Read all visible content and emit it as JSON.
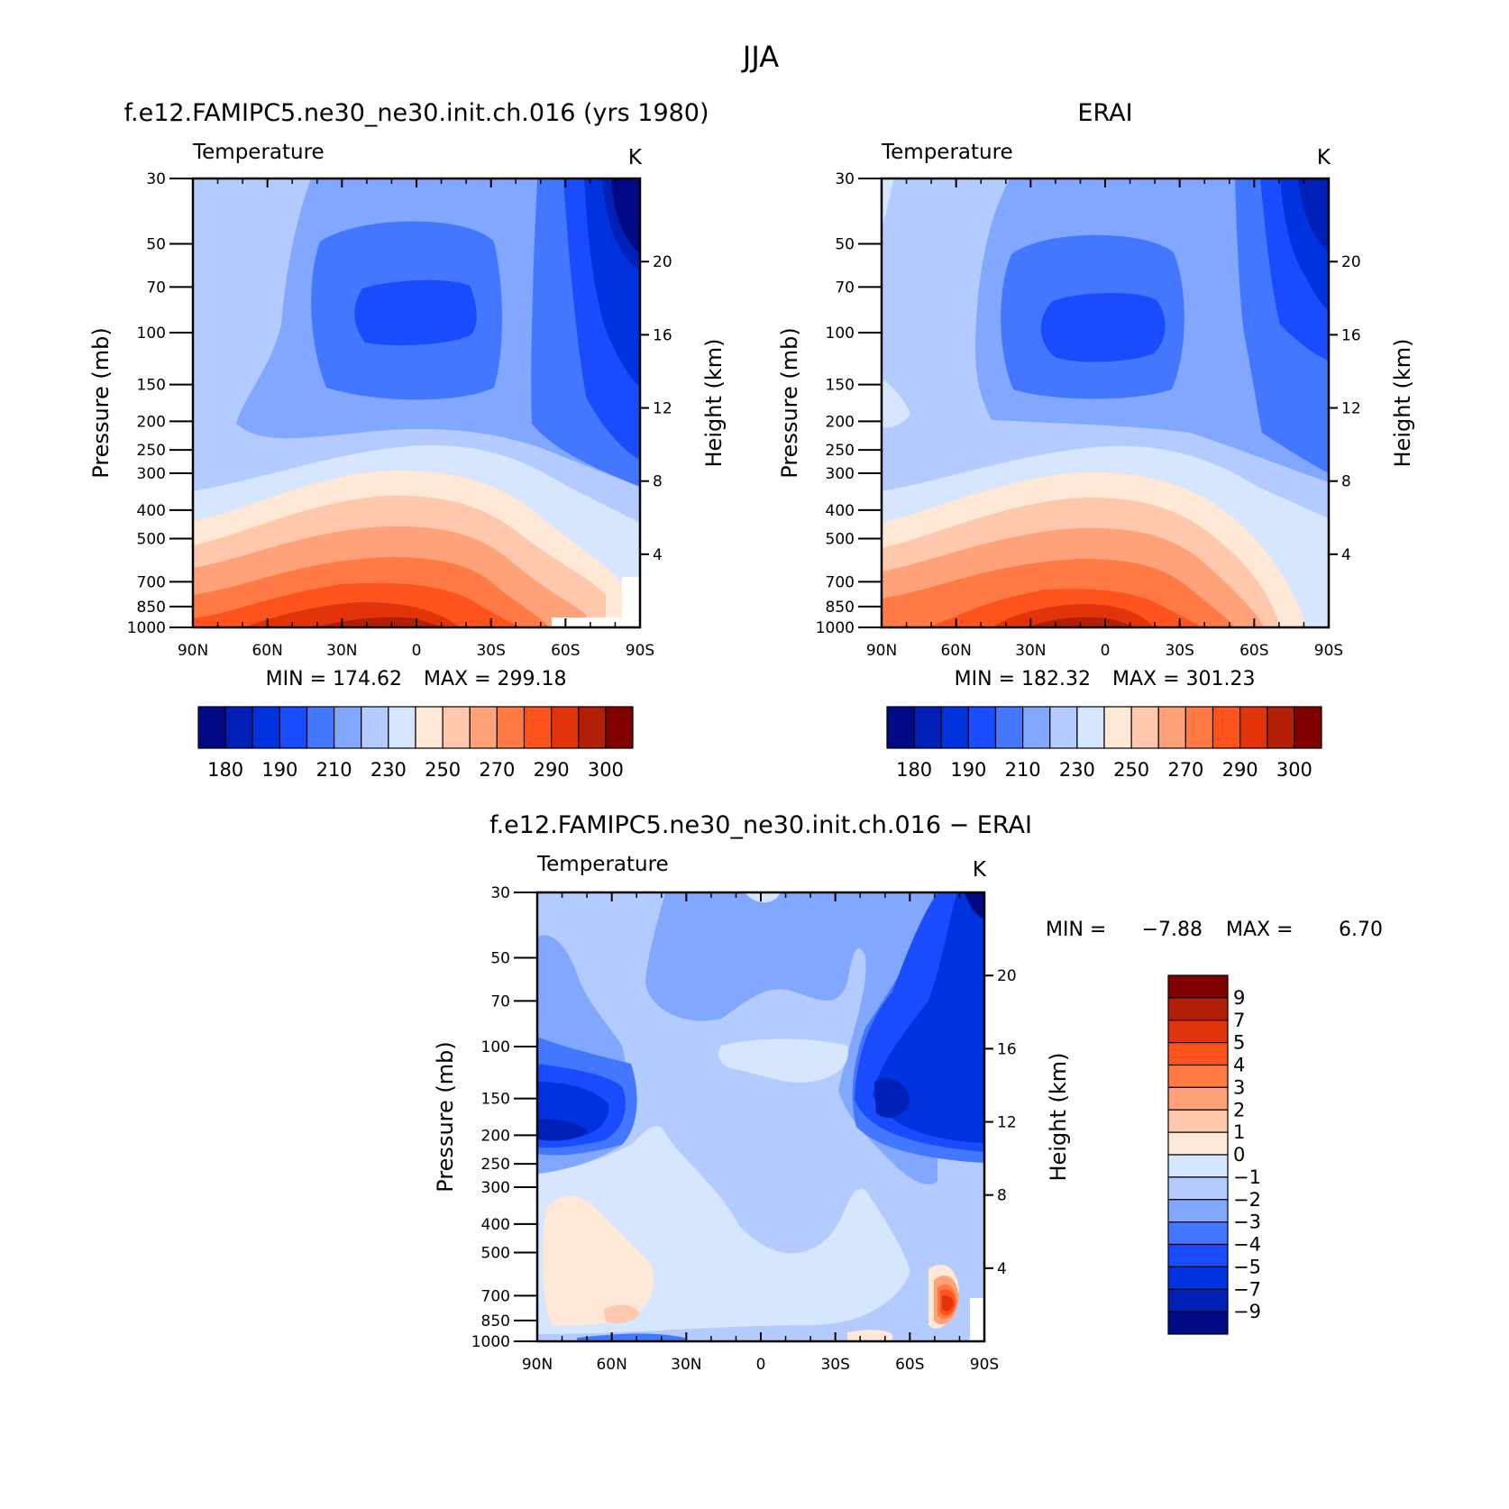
{
  "figure_title": "JJA",
  "chart_data": [
    {
      "type": "contour",
      "panel_title": "f.e12.FAMIPC5.ne30_ne30.init.ch.016 (yrs 1980)",
      "variable": "Temperature",
      "units": "K",
      "x_ticks": [
        "90N",
        "60N",
        "30N",
        "0",
        "30S",
        "60S",
        "90S"
      ],
      "y_ticks": [
        "30",
        "50",
        "70",
        "100",
        "150",
        "200",
        "250",
        "300",
        "400",
        "500",
        "700",
        "850",
        "1000"
      ],
      "y2_ticks": [
        "20",
        "16",
        "12",
        "8",
        "4"
      ],
      "xlabel": "",
      "ylabel": "Pressure (mb)",
      "y2label": "Height (km)",
      "min_label": "MIN = 174.62",
      "max_label": "MAX = 299.18",
      "min": 174.62,
      "max": 299.18,
      "colorbar_labels": [
        "180",
        "190",
        "210",
        "230",
        "250",
        "270",
        "290",
        "300"
      ],
      "colorbar_colors": [
        "#000a85",
        "#0020b7",
        "#0033e0",
        "#1a4cff",
        "#4477ff",
        "#82a7ff",
        "#b3cbff",
        "#d6e6ff",
        "#ffe8d6",
        "#ffc8ad",
        "#ffa27a",
        "#ff7a45",
        "#ff531e",
        "#e3330b",
        "#b31e07",
        "#820000"
      ]
    },
    {
      "type": "contour",
      "panel_title": "ERAI",
      "variable": "Temperature",
      "units": "K",
      "x_ticks": [
        "90N",
        "60N",
        "30N",
        "0",
        "30S",
        "60S",
        "90S"
      ],
      "y_ticks": [
        "30",
        "50",
        "70",
        "100",
        "150",
        "200",
        "250",
        "300",
        "400",
        "500",
        "700",
        "850",
        "1000"
      ],
      "y2_ticks": [
        "20",
        "16",
        "12",
        "8",
        "4"
      ],
      "ylabel": "Pressure (mb)",
      "y2label": "Height (km)",
      "min_label": "MIN = 182.32",
      "max_label": "MAX = 301.23",
      "min": 182.32,
      "max": 301.23,
      "colorbar_labels": [
        "180",
        "190",
        "210",
        "230",
        "250",
        "270",
        "290",
        "300"
      ],
      "colorbar_colors": [
        "#000a85",
        "#0020b7",
        "#0033e0",
        "#1a4cff",
        "#4477ff",
        "#82a7ff",
        "#b3cbff",
        "#d6e6ff",
        "#ffe8d6",
        "#ffc8ad",
        "#ffa27a",
        "#ff7a45",
        "#ff531e",
        "#e3330b",
        "#b31e07",
        "#820000"
      ]
    },
    {
      "type": "contour",
      "panel_title": "f.e12.FAMIPC5.ne30_ne30.init.ch.016 − ERAI",
      "variable": "Temperature",
      "units": "K",
      "x_ticks": [
        "90N",
        "60N",
        "30N",
        "0",
        "30S",
        "60S",
        "90S"
      ],
      "y_ticks": [
        "30",
        "50",
        "70",
        "100",
        "150",
        "200",
        "250",
        "300",
        "400",
        "500",
        "700",
        "850",
        "1000"
      ],
      "y2_ticks": [
        "20",
        "16",
        "12",
        "8",
        "4"
      ],
      "ylabel": "Pressure (mb)",
      "y2label": "Height (km)",
      "min_label": "MIN =",
      "min_value": "−7.88",
      "max_label": "MAX =",
      "max_value": "6.70",
      "min": -7.88,
      "max": 6.7,
      "colorbar_labels": [
        "9",
        "7",
        "5",
        "4",
        "3",
        "2",
        "1",
        "0",
        "−1",
        "−2",
        "−3",
        "−4",
        "−5",
        "−7",
        "−9"
      ],
      "colorbar_colors": [
        "#820000",
        "#b31e07",
        "#e3330b",
        "#ff531e",
        "#ff7a45",
        "#ffa27a",
        "#ffc8ad",
        "#ffe8d6",
        "#d6e6ff",
        "#b3cbff",
        "#82a7ff",
        "#4477ff",
        "#1a4cff",
        "#0033e0",
        "#0020b7",
        "#000a85"
      ]
    }
  ]
}
